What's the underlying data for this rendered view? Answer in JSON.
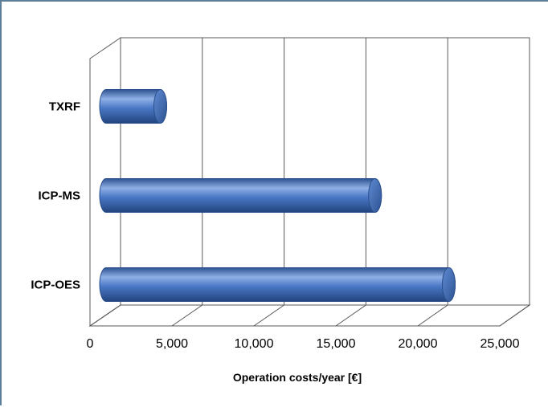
{
  "chart_data": {
    "type": "bar",
    "orientation": "horizontal",
    "style": "3d-cylinder",
    "categories": [
      "TXRF",
      "ICP-MS",
      "ICP-OES"
    ],
    "values": [
      3700,
      16800,
      21300
    ],
    "xlabel": "Operation costs/year [€]",
    "ylabel": "",
    "xlim": [
      0,
      25000
    ],
    "xticks": [
      0,
      5000,
      10000,
      15000,
      20000,
      25000
    ],
    "xtick_labels": [
      "0",
      "5,000",
      "10,000",
      "15,000",
      "20,000",
      "25,000"
    ],
    "grid": true,
    "legend": "none",
    "colors": {
      "bar": "#4472c4",
      "bar_dark": "#2d5290",
      "bar_light": "#8fb0e6"
    }
  }
}
